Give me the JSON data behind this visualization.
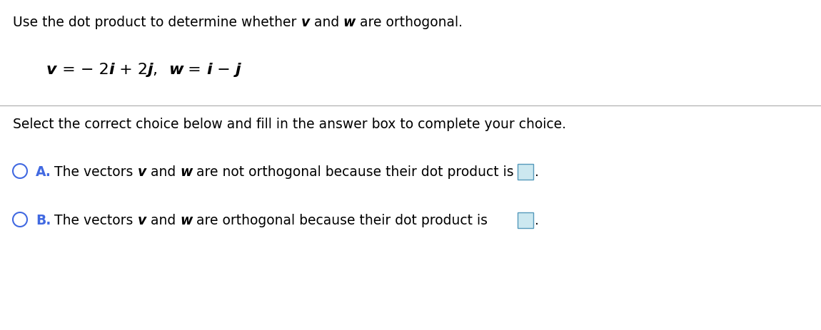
{
  "bg_color": "#ffffff",
  "text_color": "#000000",
  "label_color": "#4169e1",
  "box_fill": "#cce8f0",
  "box_edge": "#5599bb",
  "separator_color": "#aaaaaa",
  "title_parts": [
    [
      "Use the dot product to determine whether ",
      false
    ],
    [
      "v",
      true
    ],
    [
      " and ",
      false
    ],
    [
      "w",
      true
    ],
    [
      " are orthogonal.",
      false
    ]
  ],
  "eq_parts": [
    [
      "v",
      true
    ],
    [
      " = − 2",
      false
    ],
    [
      "i",
      true
    ],
    [
      " + 2",
      false
    ],
    [
      "j",
      true
    ],
    [
      ",  ",
      false
    ],
    [
      "w",
      true
    ],
    [
      " = ",
      false
    ],
    [
      "i",
      true
    ],
    [
      " − ",
      false
    ],
    [
      "j",
      true
    ]
  ],
  "select_line": "Select the correct choice below and fill in the answer box to complete your choice.",
  "option_a_parts": [
    [
      "The vectors ",
      false
    ],
    [
      "v",
      true
    ],
    [
      " and ",
      false
    ],
    [
      "w",
      true
    ],
    [
      " are not orthogonal because their dot product is",
      false
    ]
  ],
  "option_b_parts": [
    [
      "The vectors ",
      false
    ],
    [
      "v",
      true
    ],
    [
      " and ",
      false
    ],
    [
      "w",
      true
    ],
    [
      " are orthogonal because their dot product is",
      false
    ]
  ],
  "option_a_label": "A.",
  "option_b_label": "B."
}
